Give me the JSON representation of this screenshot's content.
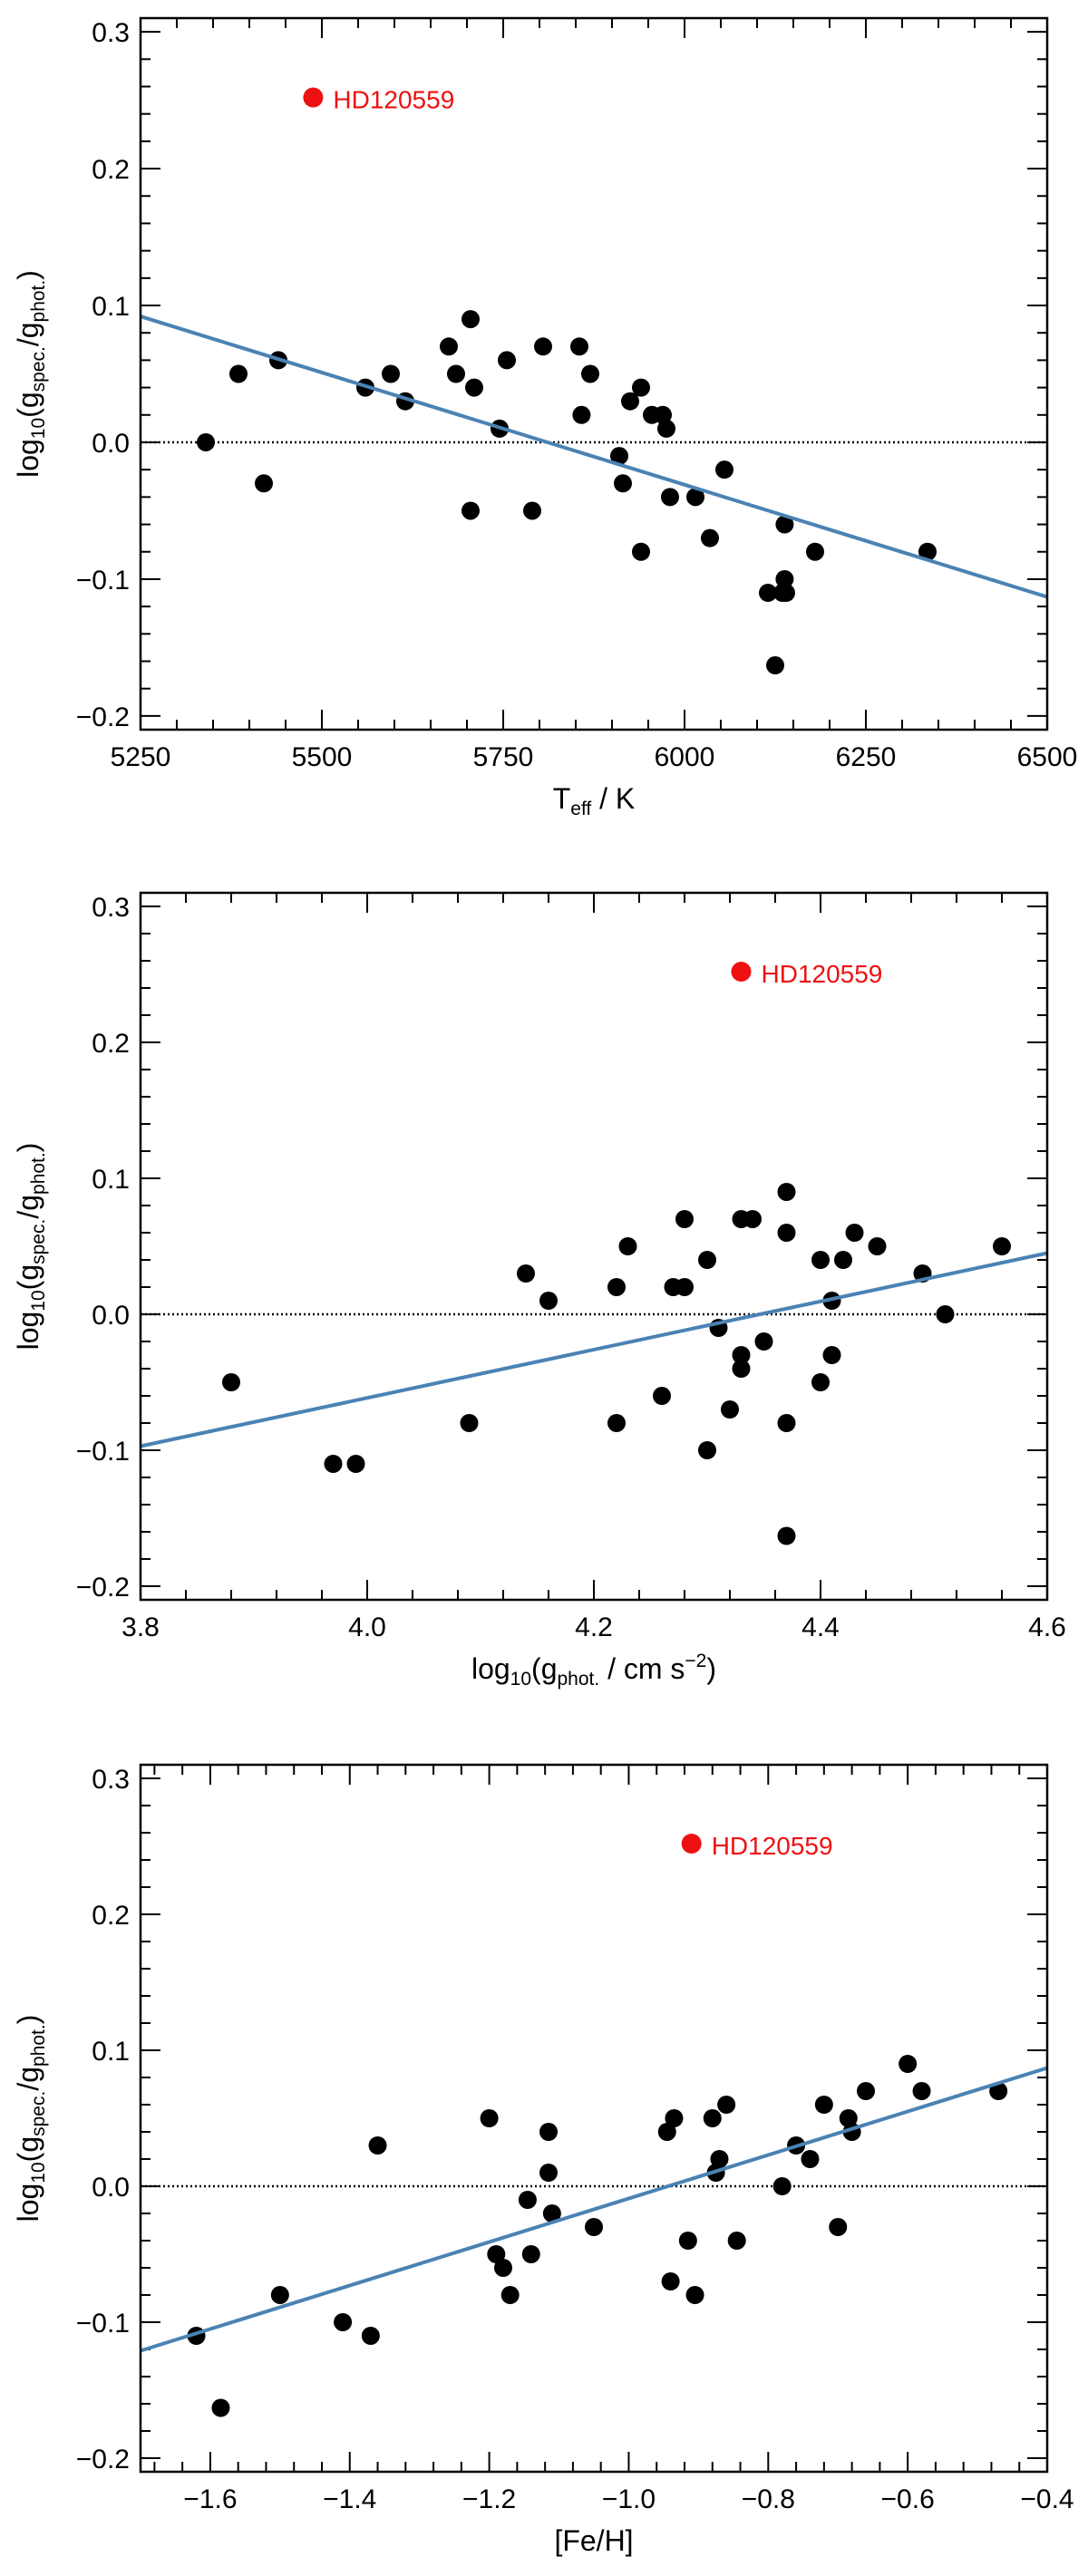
{
  "chart_data": [
    {
      "type": "scatter",
      "title": "",
      "xlabel": "T_eff / K",
      "ylabel": "log10(g_spec./g_phot.)",
      "xlim": [
        5250,
        6500
      ],
      "ylim": [
        -0.21,
        0.31
      ],
      "xticks": [
        5250,
        5500,
        5750,
        6000,
        6250,
        6500
      ],
      "xtick_labels": [
        "5250",
        "5500",
        "5750",
        "6000",
        "6250",
        "6500"
      ],
      "yticks": [
        -0.2,
        -0.1,
        0.0,
        0.1,
        0.2,
        0.3
      ],
      "ytick_labels": [
        "−0.2",
        "−0.1",
        "0.0",
        "0.1",
        "0.2",
        "0.3"
      ],
      "grid": false,
      "zero_line": 0,
      "series": [
        {
          "name": "stars",
          "color": "#000000",
          "x": [
            5340,
            5385,
            5420,
            5440,
            5560,
            5595,
            5615,
            5675,
            5685,
            5705,
            5705,
            5710,
            5745,
            5755,
            5790,
            5805,
            5855,
            5858,
            5870,
            5910,
            5915,
            5925,
            5940,
            5940,
            5955,
            5970,
            5975,
            5980,
            6015,
            6035,
            6055,
            6115,
            6125,
            6135,
            6138,
            6138,
            6140,
            6180,
            6335
          ],
          "y": [
            0.0,
            0.05,
            -0.03,
            0.06,
            0.04,
            0.05,
            0.03,
            0.07,
            0.05,
            0.09,
            -0.05,
            0.04,
            0.01,
            0.06,
            -0.05,
            0.07,
            0.07,
            0.02,
            0.05,
            -0.01,
            -0.03,
            0.03,
            0.04,
            -0.08,
            0.02,
            0.02,
            0.01,
            -0.04,
            -0.04,
            -0.07,
            -0.02,
            -0.11,
            -0.163,
            -0.11,
            -0.06,
            -0.1,
            -0.11,
            -0.08,
            -0.08
          ]
        }
      ],
      "outlier": {
        "label": "HD120559",
        "x": 5488,
        "y": 0.252,
        "color": "#ee1111"
      },
      "fit_line": {
        "color": "#4a82b4",
        "x": [
          5250,
          6500
        ],
        "y": [
          0.092,
          -0.113
        ]
      }
    },
    {
      "type": "scatter",
      "title": "",
      "xlabel": "log10(g_phot. / cm s^-2)",
      "ylabel": "log10(g_spec./g_phot.)",
      "xlim": [
        3.8,
        4.6
      ],
      "ylim": [
        -0.21,
        0.31
      ],
      "xticks": [
        3.8,
        4.0,
        4.2,
        4.4,
        4.6
      ],
      "xtick_labels": [
        "3.8",
        "4.0",
        "4.2",
        "4.4",
        "4.6"
      ],
      "yticks": [
        -0.2,
        -0.1,
        0.0,
        0.1,
        0.2,
        0.3
      ],
      "ytick_labels": [
        "−0.2",
        "−0.1",
        "0.0",
        "0.1",
        "0.2",
        "0.3"
      ],
      "grid": false,
      "zero_line": 0,
      "series": [
        {
          "name": "stars",
          "color": "#000000",
          "x": [
            3.88,
            3.97,
            3.99,
            4.09,
            4.14,
            4.16,
            4.22,
            4.22,
            4.23,
            4.26,
            4.27,
            4.28,
            4.28,
            4.3,
            4.3,
            4.31,
            4.32,
            4.33,
            4.33,
            4.33,
            4.34,
            4.35,
            4.37,
            4.37,
            4.37,
            4.37,
            4.4,
            4.4,
            4.41,
            4.41,
            4.42,
            4.43,
            4.45,
            4.49,
            4.51,
            4.56
          ],
          "y": [
            -0.05,
            -0.11,
            -0.11,
            -0.08,
            0.03,
            0.01,
            0.02,
            -0.08,
            0.05,
            -0.06,
            0.02,
            0.07,
            0.02,
            0.04,
            -0.1,
            -0.01,
            -0.07,
            0.07,
            -0.03,
            -0.04,
            0.07,
            -0.02,
            0.09,
            0.06,
            -0.08,
            -0.163,
            0.04,
            -0.05,
            0.01,
            -0.03,
            0.04,
            0.06,
            0.05,
            0.03,
            0.0,
            0.05
          ]
        }
      ],
      "outlier": {
        "label": "HD120559",
        "x": 4.33,
        "y": 0.252,
        "color": "#ee1111"
      },
      "fit_line": {
        "color": "#4a82b4",
        "x": [
          3.8,
          4.6
        ],
        "y": [
          -0.097,
          0.045
        ]
      }
    },
    {
      "type": "scatter",
      "title": "",
      "xlabel": "[Fe/H]",
      "ylabel": "log10(g_spec./g_phot.)",
      "xlim": [
        -1.7,
        -0.4
      ],
      "ylim": [
        -0.21,
        0.31
      ],
      "xticks": [
        -1.6,
        -1.4,
        -1.2,
        -1.0,
        -0.8,
        -0.6,
        -0.4
      ],
      "xtick_labels": [
        "−1.6",
        "−1.4",
        "−1.2",
        "−1.0",
        "−0.8",
        "−0.6",
        "−0.4"
      ],
      "yticks": [
        -0.2,
        -0.1,
        0.0,
        0.1,
        0.2,
        0.3
      ],
      "ytick_labels": [
        "−0.2",
        "−0.1",
        "0.0",
        "0.1",
        "0.2",
        "0.3"
      ],
      "grid": false,
      "zero_line": 0,
      "series": [
        {
          "name": "stars",
          "color": "#000000",
          "x": [
            -1.62,
            -1.585,
            -1.5,
            -1.41,
            -1.37,
            -1.36,
            -1.2,
            -1.19,
            -1.18,
            -1.17,
            -1.145,
            -1.14,
            -1.115,
            -1.115,
            -1.11,
            -1.05,
            -0.945,
            -0.94,
            -0.935,
            -0.915,
            -0.905,
            -0.88,
            -0.875,
            -0.87,
            -0.86,
            -0.845,
            -0.78,
            -0.76,
            -0.74,
            -0.72,
            -0.7,
            -0.685,
            -0.68,
            -0.66,
            -0.6,
            -0.58,
            -0.47
          ],
          "y": [
            -0.11,
            -0.163,
            -0.08,
            -0.1,
            -0.11,
            0.03,
            0.05,
            -0.05,
            -0.06,
            -0.08,
            -0.01,
            -0.05,
            0.04,
            0.01,
            -0.02,
            -0.03,
            0.04,
            -0.07,
            0.05,
            -0.04,
            -0.08,
            0.05,
            0.01,
            0.02,
            0.06,
            -0.04,
            0.0,
            0.03,
            0.02,
            0.06,
            -0.03,
            0.05,
            0.04,
            0.07,
            0.09,
            0.07,
            0.07
          ]
        }
      ],
      "outlier": {
        "label": "HD120559",
        "x": -0.91,
        "y": 0.252,
        "color": "#ee1111"
      },
      "fit_line": {
        "color": "#4a82b4",
        "x": [
          -1.7,
          -0.4
        ],
        "y": [
          -0.121,
          0.087
        ]
      }
    }
  ]
}
